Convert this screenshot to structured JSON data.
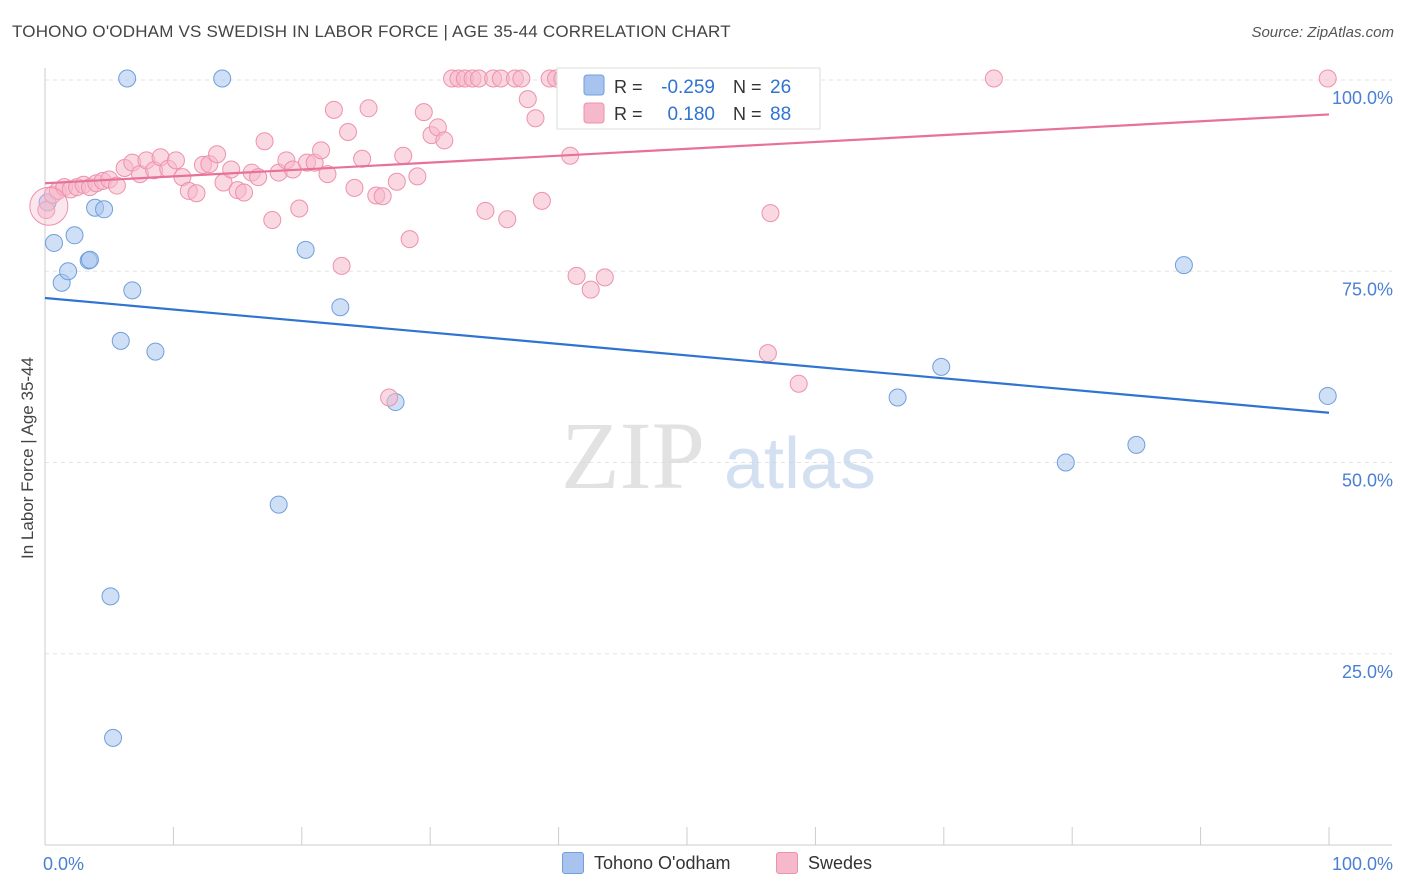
{
  "header": {
    "title": "TOHONO O'ODHAM VS SWEDISH IN LABOR FORCE | AGE 35-44 CORRELATION CHART",
    "source": "Source: ZipAtlas.com"
  },
  "watermark": {
    "zip": "ZIP",
    "atlas": "atlas"
  },
  "chart_data": {
    "type": "scatter",
    "title": "TOHONO O'ODHAM VS SWEDISH IN LABOR FORCE | AGE 35-44 CORRELATION CHART",
    "xlabel": "",
    "ylabel": "In Labor Force | Age 35-44",
    "xlim": [
      0,
      100
    ],
    "ylim": [
      0,
      100
    ],
    "x_tick_labels": {
      "min": "0.0%",
      "max": "100.0%"
    },
    "y_tick_labels": [
      {
        "value": 25,
        "label": "25.0%"
      },
      {
        "value": 50,
        "label": "50.0%"
      },
      {
        "value": 75,
        "label": "75.0%"
      },
      {
        "value": 100,
        "label": "100.0%"
      }
    ],
    "grid": true,
    "legend_position": "bottom",
    "stats_box": {
      "r_label": "R =",
      "n_label": "N =",
      "rows": [
        {
          "series": "Tohono O'odham",
          "r": "-0.259",
          "n": "26"
        },
        {
          "series": "Swedes",
          "r": "0.180",
          "n": "88"
        }
      ]
    },
    "series": [
      {
        "name": "Tohono O'odham",
        "color": "#a8c4ee",
        "stroke": "#6f9fdc",
        "line_color": "#2f74d0",
        "trend": [
          [
            0,
            71.5
          ],
          [
            100,
            56.5
          ]
        ],
        "points": [
          [
            0.2,
            84
          ],
          [
            0.7,
            78.7
          ],
          [
            1.3,
            73.5
          ],
          [
            1.8,
            75
          ],
          [
            2.3,
            79.7
          ],
          [
            3.4,
            76.4
          ],
          [
            3.5,
            76.5
          ],
          [
            3.9,
            83.3
          ],
          [
            4.6,
            83.1
          ],
          [
            5.1,
            32.5
          ],
          [
            5.3,
            14
          ],
          [
            5.9,
            65.9
          ],
          [
            6.4,
            100.2
          ],
          [
            6.8,
            72.5
          ],
          [
            8.6,
            64.5
          ],
          [
            13.8,
            100.2
          ],
          [
            18.2,
            44.5
          ],
          [
            20.3,
            77.8
          ],
          [
            23,
            70.3
          ],
          [
            27.3,
            57.9
          ],
          [
            66.4,
            58.5
          ],
          [
            69.8,
            62.5
          ],
          [
            79.5,
            50
          ],
          [
            85,
            52.3
          ],
          [
            88.7,
            75.8
          ],
          [
            99.9,
            58.7
          ]
        ]
      },
      {
        "name": "Swedes",
        "color": "#f6b8cb",
        "stroke": "#ee91ad",
        "line_color": "#e8719a",
        "trend": [
          [
            0,
            86.5
          ],
          [
            100,
            95.5
          ]
        ],
        "points": [
          [
            0.1,
            83
          ],
          [
            0.6,
            85
          ],
          [
            1.0,
            85.5
          ],
          [
            1.5,
            86
          ],
          [
            2.0,
            85.7
          ],
          [
            2.5,
            86
          ],
          [
            3.0,
            86.3
          ],
          [
            3.5,
            86
          ],
          [
            4.0,
            86.5
          ],
          [
            4.5,
            86.8
          ],
          [
            5.0,
            87
          ],
          [
            5.6,
            86.2
          ],
          [
            6.2,
            88.5
          ],
          [
            6.8,
            89.2
          ],
          [
            7.4,
            87.7
          ],
          [
            7.9,
            89.5
          ],
          [
            8.5,
            88.2
          ],
          [
            9.0,
            89.9
          ],
          [
            9.6,
            88.4
          ],
          [
            10.2,
            89.5
          ],
          [
            10.7,
            87.3
          ],
          [
            11.2,
            85.5
          ],
          [
            11.8,
            85.2
          ],
          [
            12.3,
            88.9
          ],
          [
            12.8,
            89
          ],
          [
            13.4,
            90.3
          ],
          [
            13.9,
            86.6
          ],
          [
            14.5,
            88.3
          ],
          [
            15.0,
            85.6
          ],
          [
            15.5,
            85.3
          ],
          [
            16.1,
            87.9
          ],
          [
            16.6,
            87.3
          ],
          [
            17.1,
            92
          ],
          [
            17.7,
            81.7
          ],
          [
            18.2,
            87.9
          ],
          [
            18.8,
            89.5
          ],
          [
            19.3,
            88.3
          ],
          [
            19.8,
            83.2
          ],
          [
            20.4,
            89.2
          ],
          [
            21.0,
            89.2
          ],
          [
            21.5,
            90.8
          ],
          [
            22.0,
            87.7
          ],
          [
            22.5,
            96.1
          ],
          [
            23.1,
            75.7
          ],
          [
            23.6,
            93.2
          ],
          [
            24.1,
            85.9
          ],
          [
            24.7,
            89.7
          ],
          [
            25.2,
            96.3
          ],
          [
            25.8,
            84.9
          ],
          [
            26.3,
            84.8
          ],
          [
            26.8,
            58.5
          ],
          [
            27.4,
            86.7
          ],
          [
            27.9,
            90.1
          ],
          [
            28.4,
            79.2
          ],
          [
            29.0,
            87.4
          ],
          [
            29.5,
            95.8
          ],
          [
            30.1,
            92.8
          ],
          [
            30.6,
            93.8
          ],
          [
            31.1,
            92.1
          ],
          [
            31.7,
            100.2
          ],
          [
            32.2,
            100.2
          ],
          [
            32.7,
            100.2
          ],
          [
            33.3,
            100.2
          ],
          [
            33.8,
            100.2
          ],
          [
            34.3,
            82.9
          ],
          [
            34.9,
            100.2
          ],
          [
            35.5,
            100.2
          ],
          [
            36.0,
            81.8
          ],
          [
            36.6,
            100.2
          ],
          [
            37.1,
            100.2
          ],
          [
            37.6,
            97.5
          ],
          [
            38.2,
            95
          ],
          [
            38.7,
            84.2
          ],
          [
            39.3,
            100.2
          ],
          [
            39.8,
            100.2
          ],
          [
            40.3,
            100.2
          ],
          [
            40.9,
            90.1
          ],
          [
            41.4,
            74.4
          ],
          [
            42.0,
            100.2
          ],
          [
            42.5,
            72.6
          ],
          [
            43.0,
            100.2
          ],
          [
            43.6,
            74.2
          ],
          [
            44.1,
            100.2
          ],
          [
            56.3,
            64.3
          ],
          [
            56.5,
            82.6
          ],
          [
            58.7,
            60.3
          ],
          [
            73.9,
            100.2
          ],
          [
            99.9,
            100.2
          ]
        ]
      }
    ]
  }
}
